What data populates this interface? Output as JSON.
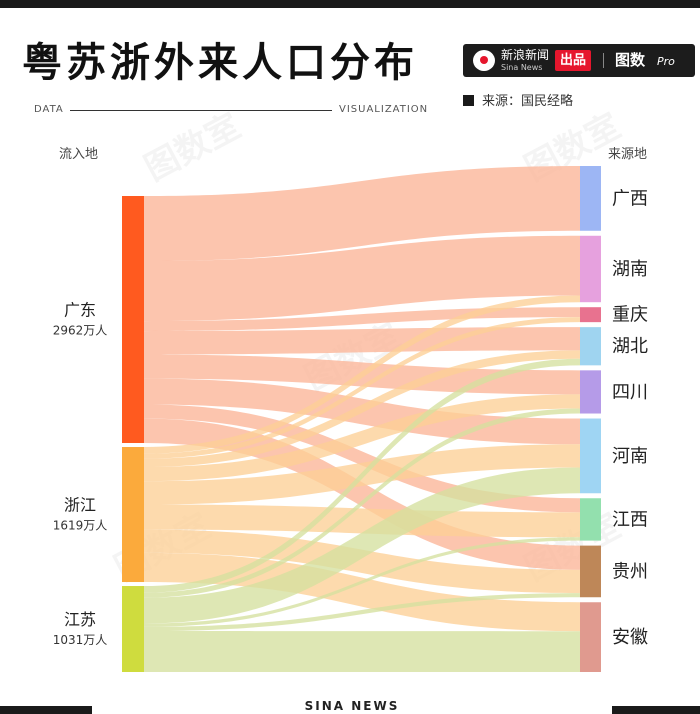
{
  "header": {
    "title": "粤苏浙外来人口分布",
    "sub_left": "DATA",
    "sub_right": "VISUALIZATION"
  },
  "brand": {
    "name": "新浪新闻",
    "name_en": "Sina News",
    "badge": "出品",
    "tushu": "图数",
    "pro": "Pro"
  },
  "source": "来源：国民经略",
  "footer": "SINA NEWS",
  "watermark": "图数室",
  "colors": {
    "广东": "#ff5a1f",
    "浙江": "#fbaa3c",
    "江苏": "#cfdc3e",
    "flow_广东": "#fbb597",
    "flow_浙江": "#fccf96",
    "flow_江苏": "#d5e09f",
    "广西": "#9db6f4",
    "湖南": "#e6a1de",
    "重庆": "#e8728f",
    "湖北": "#9fd4f0",
    "四川": "#b59be8",
    "河南": "#9fd5f3",
    "江西": "#93e0ae",
    "贵州": "#be8758",
    "安徽": "#e09a8f"
  },
  "chart_data": {
    "type": "sankey",
    "title": "粤苏浙外来人口分布",
    "source_header": "流入地",
    "target_header": "来源地",
    "unit": "万人",
    "sources": [
      {
        "name": "广东",
        "value": 2962,
        "label": "2962万人"
      },
      {
        "name": "浙江",
        "value": 1619,
        "label": "1619万人"
      },
      {
        "name": "江苏",
        "value": 1031,
        "label": "1031万人"
      }
    ],
    "targets": [
      "广西",
      "湖南",
      "重庆",
      "湖北",
      "四川",
      "河南",
      "江西",
      "贵州",
      "安徽"
    ],
    "links": [
      {
        "source": "广东",
        "target": "广西",
        "value": 780
      },
      {
        "source": "广东",
        "target": "湖南",
        "value": 720
      },
      {
        "source": "广东",
        "target": "重庆",
        "value": 120
      },
      {
        "source": "广东",
        "target": "湖北",
        "value": 280
      },
      {
        "source": "广东",
        "target": "四川",
        "value": 290
      },
      {
        "source": "广东",
        "target": "河南",
        "value": 310
      },
      {
        "source": "广东",
        "target": "江西",
        "value": 170
      },
      {
        "source": "广东",
        "target": "贵州",
        "value": 292
      },
      {
        "source": "浙江",
        "target": "湖南",
        "value": 80
      },
      {
        "source": "浙江",
        "target": "重庆",
        "value": 60
      },
      {
        "source": "浙江",
        "target": "湖北",
        "value": 100
      },
      {
        "source": "浙江",
        "target": "四川",
        "value": 170
      },
      {
        "source": "浙江",
        "target": "河南",
        "value": 280
      },
      {
        "source": "浙江",
        "target": "江西",
        "value": 300
      },
      {
        "source": "浙江",
        "target": "贵州",
        "value": 280
      },
      {
        "source": "浙江",
        "target": "安徽",
        "value": 349
      },
      {
        "source": "江苏",
        "target": "湖北",
        "value": 80
      },
      {
        "source": "江苏",
        "target": "四川",
        "value": 60
      },
      {
        "source": "江苏",
        "target": "河南",
        "value": 310
      },
      {
        "source": "江苏",
        "target": "江西",
        "value": 40
      },
      {
        "source": "江苏",
        "target": "贵州",
        "value": 50
      },
      {
        "source": "江苏",
        "target": "安徽",
        "value": 491
      }
    ]
  }
}
